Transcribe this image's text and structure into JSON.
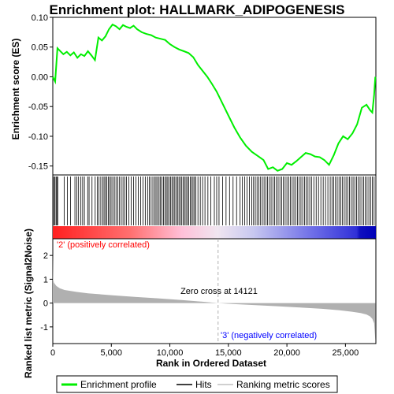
{
  "chart_data": [
    {
      "type": "line",
      "title": "Enrichment plot: HALLMARK_ADIPOGENESIS",
      "ylabel": "Enrichment score (ES)",
      "xlim": [
        0,
        27600
      ],
      "ylim": [
        -0.165,
        0.1
      ],
      "y_ticks": [
        "0.10",
        "0.05",
        "0.00",
        "-0.05",
        "-0.10",
        "-0.15"
      ],
      "y_tick_values": [
        0.1,
        0.05,
        0.0,
        -0.05,
        -0.1,
        -0.15
      ],
      "grid": false,
      "series": [
        {
          "name": "Enrichment profile",
          "color": "#00ee00",
          "x": [
            0,
            200,
            400,
            600,
            900,
            1200,
            1500,
            1800,
            2100,
            2400,
            2700,
            3000,
            3300,
            3600,
            3900,
            4200,
            4500,
            4800,
            5100,
            5400,
            5700,
            6000,
            6300,
            6600,
            6900,
            7200,
            7600,
            8000,
            8400,
            8800,
            9200,
            9600,
            10000,
            10400,
            10800,
            11200,
            11600,
            12000,
            12400,
            12800,
            13200,
            13600,
            14000,
            14500,
            15000,
            15500,
            16000,
            16500,
            17000,
            17500,
            18000,
            18400,
            18800,
            19200,
            19600,
            20000,
            20400,
            20800,
            21200,
            21600,
            22000,
            22400,
            22800,
            23200,
            23600,
            24000,
            24400,
            24800,
            25200,
            25600,
            26000,
            26400,
            26800,
            27100,
            27300,
            27450,
            27550
          ],
          "y": [
            0.0,
            -0.008,
            0.048,
            0.044,
            0.038,
            0.042,
            0.036,
            0.041,
            0.032,
            0.038,
            0.035,
            0.043,
            0.036,
            0.028,
            0.066,
            0.061,
            0.068,
            0.08,
            0.088,
            0.085,
            0.08,
            0.087,
            0.084,
            0.082,
            0.086,
            0.08,
            0.075,
            0.072,
            0.07,
            0.066,
            0.064,
            0.062,
            0.055,
            0.05,
            0.046,
            0.043,
            0.04,
            0.033,
            0.02,
            0.01,
            0.0,
            -0.012,
            -0.025,
            -0.045,
            -0.065,
            -0.085,
            -0.102,
            -0.116,
            -0.126,
            -0.133,
            -0.14,
            -0.155,
            -0.152,
            -0.158,
            -0.155,
            -0.145,
            -0.148,
            -0.142,
            -0.135,
            -0.128,
            -0.13,
            -0.134,
            -0.135,
            -0.14,
            -0.148,
            -0.132,
            -0.112,
            -0.1,
            -0.105,
            -0.095,
            -0.08,
            -0.052,
            -0.047,
            -0.056,
            -0.06,
            -0.03,
            0.0
          ]
        }
      ]
    },
    {
      "type": "heatmap",
      "legend": "Hits",
      "hit_positions": [
        80,
        180,
        280,
        350,
        420,
        980,
        1250,
        1520,
        1890,
        2050,
        2200,
        2400,
        2550,
        2700,
        2980,
        3100,
        3350,
        3620,
        3800,
        3950,
        4100,
        4260,
        4380,
        4500,
        4620,
        4740,
        4860,
        4980,
        5120,
        5260,
        5400,
        5550,
        5700,
        5850,
        6000,
        6150,
        6300,
        6500,
        6700,
        6900,
        7100,
        7300,
        7500,
        7700,
        7900,
        8100,
        8250,
        8400,
        8550,
        8700,
        8820,
        8950,
        9080,
        9200,
        9330,
        9460,
        9580,
        9700,
        9820,
        9940,
        10060,
        10180,
        10300,
        10420,
        10540,
        10660,
        10780,
        10900,
        11020,
        11140,
        11260,
        11380,
        11500,
        11620,
        11740,
        11860,
        11980,
        12100,
        12220,
        12400,
        12600,
        12800,
        13000,
        13250,
        13500,
        13800,
        14000,
        14200,
        14500,
        14800,
        15100,
        15400,
        15700,
        16000,
        16200,
        16400,
        16600,
        16800,
        17000,
        17150,
        17300,
        17450,
        17600,
        17750,
        17900,
        18050,
        18200,
        18350,
        18500,
        18650,
        18800,
        18950,
        19100,
        19250,
        19400,
        19550,
        19700,
        19850,
        20000,
        20150,
        20300,
        20450,
        20600,
        20750,
        20900,
        21050,
        21200,
        21350,
        21500,
        21650,
        21800,
        21950,
        22100,
        22300,
        22500,
        22700,
        22900,
        23100,
        23300,
        23500,
        23700,
        23850,
        24000,
        24150,
        24300,
        24450,
        24600,
        24750,
        24900,
        25050,
        25200,
        25350,
        25500,
        25650,
        25800,
        25950,
        26100,
        26250,
        26400,
        26550,
        26700,
        26850,
        27000,
        27150,
        27300,
        27450
      ],
      "gradient_labels": {
        "positive": "'2' (positively correlated)",
        "negative": "'3' (negatively correlated)"
      },
      "colors": {
        "positive": "#ff0000",
        "negative": "#0000ff"
      }
    },
    {
      "type": "area",
      "legend": "Ranking metric scores",
      "xlabel": "Rank in Ordered Dataset",
      "ylabel": "Ranked list metric (Signal2Noise)",
      "xlim": [
        0,
        27600
      ],
      "ylim": [
        -1.7,
        2.7
      ],
      "x_ticks": [
        "0",
        "5,000",
        "10,000",
        "15,000",
        "20,000",
        "25,000"
      ],
      "x_tick_values": [
        0,
        5000,
        10000,
        15000,
        20000,
        25000
      ],
      "y_ticks": [
        "2",
        "1",
        "0",
        "-1"
      ],
      "y_tick_values": [
        2,
        1,
        0,
        -1
      ],
      "zero_cross": 14121,
      "annotation": "Zero cross at 14121",
      "x": [
        0,
        30,
        100,
        300,
        600,
        1000,
        2000,
        3000,
        5000,
        7000,
        9000,
        11000,
        13000,
        14121,
        15000,
        17000,
        19000,
        21000,
        23000,
        24500,
        25500,
        26300,
        26800,
        27100,
        27300,
        27450,
        27550
      ],
      "y": [
        2.1,
        1.0,
        0.85,
        0.72,
        0.62,
        0.55,
        0.47,
        0.41,
        0.33,
        0.26,
        0.2,
        0.13,
        0.05,
        0.0,
        -0.03,
        -0.08,
        -0.13,
        -0.18,
        -0.24,
        -0.3,
        -0.36,
        -0.42,
        -0.48,
        -0.56,
        -0.66,
        -0.85,
        -1.55
      ],
      "color": "#b0b0b0"
    }
  ],
  "legend": {
    "items": [
      {
        "label": "Enrichment profile",
        "color": "#00ee00",
        "kind": "thick-line"
      },
      {
        "label": "Hits",
        "color": "#000000",
        "kind": "line"
      },
      {
        "label": "Ranking metric scores",
        "color": "#c0c0c0",
        "kind": "line"
      }
    ]
  }
}
